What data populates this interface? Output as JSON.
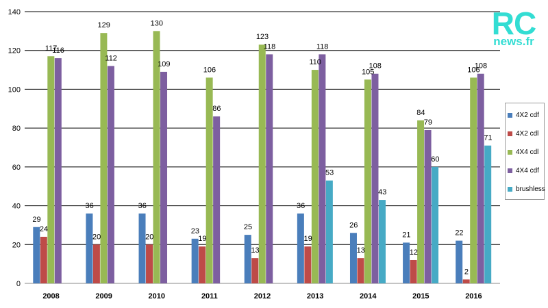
{
  "logo": {
    "rc": "RC",
    "news": "news.fr"
  },
  "chart_data": {
    "type": "bar",
    "title": "",
    "xlabel": "",
    "ylabel": "",
    "ylim": [
      0,
      140
    ],
    "yticks": [
      0,
      20,
      40,
      60,
      80,
      100,
      120,
      140
    ],
    "grid": true,
    "legend_position": "right",
    "categories": [
      "2008",
      "2009",
      "2010",
      "2011",
      "2012",
      "2013",
      "2014",
      "2015",
      "2016"
    ],
    "series": [
      {
        "name": "4X2 cdf",
        "color": "#4a7ebb",
        "values": [
          29,
          36,
          36,
          23,
          25,
          36,
          26,
          21,
          22
        ]
      },
      {
        "name": "4X2 cdl",
        "color": "#be4b48",
        "values": [
          24,
          20,
          20,
          19,
          13,
          19,
          13,
          12,
          2
        ]
      },
      {
        "name": "4X4 cdl",
        "color": "#98b954",
        "values": [
          117,
          129,
          130,
          106,
          123,
          110,
          105,
          84,
          106
        ]
      },
      {
        "name": "4X4 cdf",
        "color": "#7d5fa0",
        "values": [
          116,
          112,
          109,
          86,
          118,
          118,
          108,
          79,
          108
        ]
      },
      {
        "name": "brushless",
        "color": "#46aac5",
        "values": [
          null,
          null,
          null,
          null,
          null,
          53,
          43,
          60,
          71
        ]
      }
    ]
  }
}
